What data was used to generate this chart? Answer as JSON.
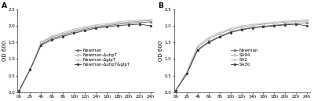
{
  "time_points": [
    0,
    2,
    4,
    6,
    8,
    10,
    12,
    14,
    16,
    18,
    20,
    22,
    24
  ],
  "panel_A": {
    "title": "A",
    "ylabel": "OD 600",
    "series": {
      "Newman": [
        0.05,
        0.7,
        1.45,
        1.62,
        1.72,
        1.82,
        1.9,
        1.96,
        2.0,
        2.05,
        2.08,
        2.1,
        2.12
      ],
      "Newman-ΔuhpT": [
        0.05,
        0.7,
        1.5,
        1.66,
        1.76,
        1.86,
        1.93,
        1.99,
        2.03,
        2.08,
        2.11,
        2.14,
        2.16
      ],
      "Newman-ΔglpT": [
        0.05,
        0.7,
        1.52,
        1.7,
        1.8,
        1.9,
        1.97,
        2.03,
        2.07,
        2.12,
        2.15,
        2.17,
        2.18
      ],
      "Newman-ΔuhpT&glpT": [
        0.05,
        0.68,
        1.42,
        1.58,
        1.68,
        1.78,
        1.86,
        1.93,
        1.97,
        2.01,
        2.03,
        2.05,
        2.0
      ]
    },
    "markers": [
      "s",
      "o",
      "^",
      "s"
    ],
    "linestyles": [
      "-",
      "-",
      "-",
      "-"
    ],
    "colors": [
      "#666666",
      "#999999",
      "#bbbbbb",
      "#333333"
    ],
    "marker_sizes": [
      2,
      2,
      2,
      2
    ],
    "markerfill": [
      "#666666",
      "white",
      "white",
      "#333333"
    ]
  },
  "panel_B": {
    "title": "B",
    "ylabel": "OD 600",
    "series": {
      "Newman": [
        0.05,
        0.55,
        1.28,
        1.52,
        1.68,
        1.82,
        1.9,
        1.95,
        1.99,
        2.02,
        2.05,
        2.07,
        2.1
      ],
      "SA94": [
        0.05,
        0.58,
        1.35,
        1.6,
        1.76,
        1.88,
        1.96,
        2.01,
        2.05,
        2.08,
        2.11,
        2.13,
        2.15
      ],
      "SA2": [
        0.05,
        0.62,
        1.4,
        1.65,
        1.8,
        1.92,
        2.0,
        2.04,
        2.08,
        2.11,
        2.14,
        2.16,
        2.18
      ],
      "SA30": [
        0.05,
        0.55,
        1.26,
        1.5,
        1.66,
        1.8,
        1.88,
        1.94,
        1.97,
        2.0,
        2.03,
        2.05,
        2.0
      ]
    },
    "markers": [
      "s",
      "o",
      "^",
      "s"
    ],
    "linestyles": [
      "-",
      "-",
      "-",
      "-"
    ],
    "colors": [
      "#666666",
      "#999999",
      "#bbbbbb",
      "#333333"
    ],
    "marker_sizes": [
      2,
      2,
      2,
      2
    ],
    "markerfill": [
      "#666666",
      "white",
      "white",
      "#333333"
    ]
  },
  "xlim": [
    -0.3,
    24.5
  ],
  "ylim": [
    0.0,
    2.5
  ],
  "yticks": [
    0.0,
    0.5,
    1.0,
    1.5,
    2.0,
    2.5
  ],
  "xticks": [
    0,
    2,
    4,
    6,
    8,
    10,
    12,
    14,
    16,
    18,
    20,
    22,
    24
  ],
  "xticklabels": [
    "0h",
    "2h",
    "4h",
    "6h",
    "8h",
    "10h",
    "12h",
    "14h",
    "16h",
    "18h",
    "20h",
    "22h",
    "24h"
  ],
  "legend_fontsize": 4.0,
  "axis_fontsize": 5.0,
  "tick_fontsize": 4.0,
  "title_fontsize": 6.5,
  "linewidth": 0.6
}
